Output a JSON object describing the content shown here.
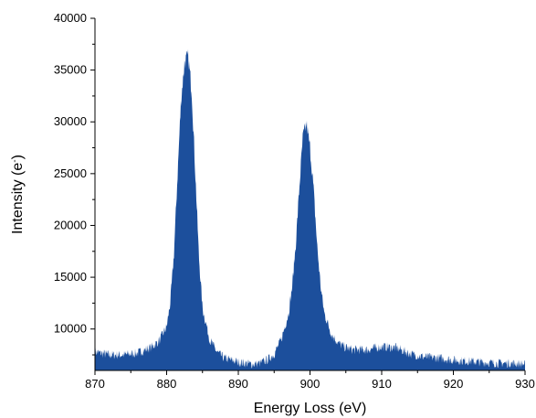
{
  "chart_data": {
    "type": "area",
    "title": "",
    "xlabel": "Energy Loss (eV)",
    "ylabel_main": "Intensity (e",
    "ylabel_sup": "-",
    "ylabel_close": ")",
    "xlim": [
      870,
      930
    ],
    "ylim": [
      6000,
      40000
    ],
    "x_ticks": [
      870,
      880,
      890,
      900,
      910,
      920,
      930
    ],
    "y_ticks": [
      10000,
      15000,
      20000,
      25000,
      30000,
      35000,
      40000
    ],
    "x_tick_labels": [
      "870",
      "880",
      "890",
      "900",
      "910",
      "920",
      "930"
    ],
    "y_tick_labels": [
      "10000",
      "15000",
      "20000",
      "25000",
      "30000",
      "35000",
      "40000"
    ],
    "grid": false,
    "color": "#1c4f9c",
    "series": [
      {
        "x": [
          870,
          872,
          874,
          876,
          878,
          879,
          880,
          880.5,
          881,
          881.5,
          882,
          882.5,
          883,
          883.5,
          884,
          884.5,
          885,
          886,
          887,
          888,
          890,
          892,
          893,
          894,
          895,
          896,
          897,
          897.5,
          898,
          898.5,
          899,
          899.5,
          900,
          900.5,
          901,
          901.5,
          902,
          903,
          904,
          905,
          906,
          908,
          910,
          912,
          914,
          916,
          918,
          920,
          922,
          924,
          926,
          928,
          930
        ],
        "y": [
          7800,
          7500,
          7500,
          7700,
          8300,
          8900,
          10200,
          12500,
          17000,
          24500,
          32000,
          35800,
          36200,
          33000,
          25000,
          17000,
          12000,
          9000,
          7800,
          7200,
          6800,
          6600,
          6700,
          7000,
          7600,
          9000,
          11500,
          14000,
          18000,
          23500,
          28500,
          29800,
          27500,
          23500,
          18000,
          14000,
          11500,
          9500,
          8600,
          8200,
          8000,
          8000,
          8300,
          8200,
          7600,
          7300,
          7200,
          7000,
          6900,
          6800,
          6700,
          6700,
          6600
        ]
      }
    ]
  }
}
